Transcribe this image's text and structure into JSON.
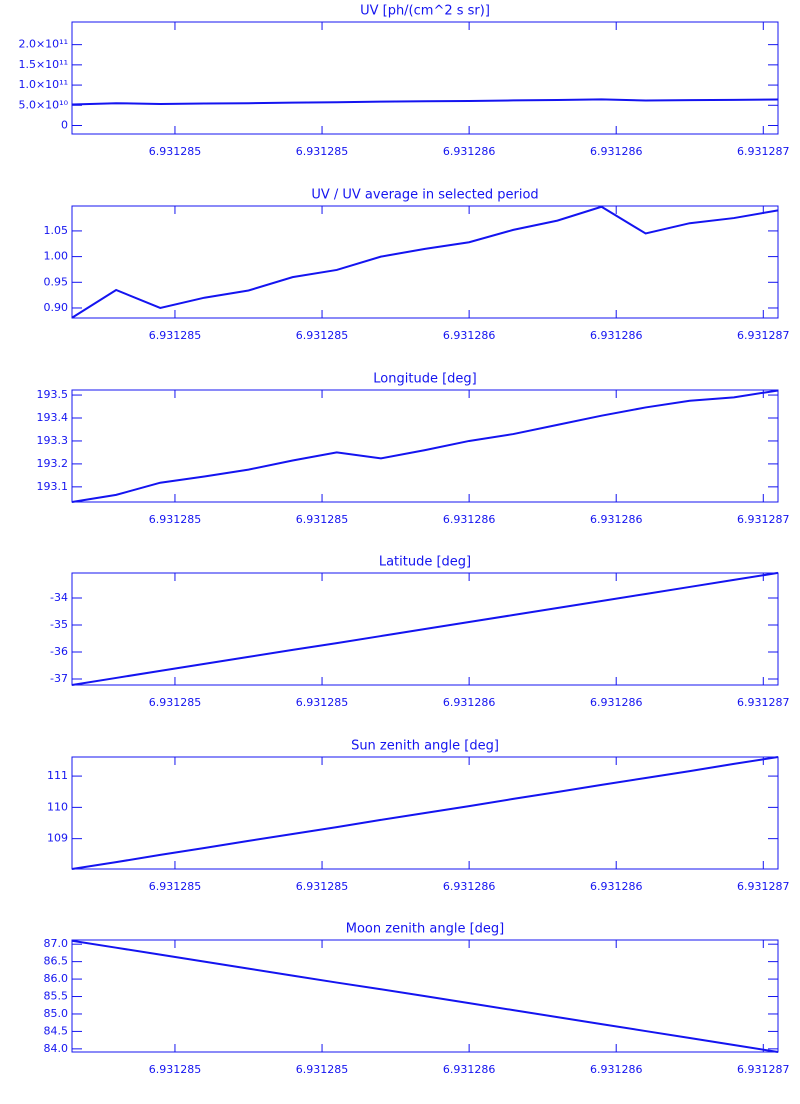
{
  "chart_data": [
    {
      "type": "line",
      "title": "UV [ph/(cm^2 s sr)]",
      "color": "#1414f0",
      "x": [
        6.93128445,
        6.9312846,
        6.93128475,
        6.9312849,
        6.93128505,
        6.9312852,
        6.93128535,
        6.9312855,
        6.93128565,
        6.9312858,
        6.93128595,
        6.9312861,
        6.93128625,
        6.9312864,
        6.93128655,
        6.9312867,
        6.93128685
      ],
      "values": [
        52000000000,
        55200000000,
        53100000000,
        54300000000,
        55100000000,
        56600000000,
        57500000000,
        59000000000,
        59900000000,
        60700000000,
        62100000000,
        63100000000,
        64700000000,
        61700000000,
        62800000000,
        63400000000,
        64300000000
      ],
      "xlim": [
        6.93128445,
        6.93128685
      ],
      "xticks": [
        {
          "value": 6.9312848,
          "label": "6.931285"
        },
        {
          "value": 6.9312853,
          "label": "6.931285"
        },
        {
          "value": 6.9312858,
          "label": "6.931286"
        },
        {
          "value": 6.9312863,
          "label": "6.931286"
        },
        {
          "value": 6.9312868,
          "label": "6.931287"
        }
      ],
      "ylim": [
        -21000000000,
        256000000000
      ],
      "yticks": [
        0,
        {
          "value": 50000000000,
          "label": "5.0×10¹⁰"
        },
        {
          "value": 100000000000,
          "label": "1.0×10¹¹"
        },
        {
          "value": 150000000000,
          "label": "1.5×10¹¹"
        },
        {
          "value": 200000000000,
          "label": "2.0×10¹¹"
        }
      ]
    },
    {
      "type": "line",
      "title": "UV / UV average in selected period",
      "color": "#1414f0",
      "x": [
        6.93128445,
        6.9312846,
        6.93128475,
        6.9312849,
        6.93128505,
        6.9312852,
        6.93128535,
        6.9312855,
        6.93128565,
        6.9312858,
        6.93128595,
        6.9312861,
        6.93128625,
        6.9312864,
        6.93128655,
        6.9312867,
        6.93128685
      ],
      "values": [
        0.881,
        0.935,
        0.9,
        0.92,
        0.934,
        0.96,
        0.974,
        1.0,
        1.015,
        1.028,
        1.052,
        1.07,
        1.097,
        1.045,
        1.065,
        1.075,
        1.09
      ],
      "xlim": [
        6.93128445,
        6.93128685
      ],
      "xticks": [
        {
          "value": 6.9312848,
          "label": "6.931285"
        },
        {
          "value": 6.9312853,
          "label": "6.931285"
        },
        {
          "value": 6.9312858,
          "label": "6.931286"
        },
        {
          "value": 6.9312863,
          "label": "6.931286"
        },
        {
          "value": 6.9312868,
          "label": "6.931287"
        }
      ],
      "ylim": [
        0.8805,
        1.0985
      ],
      "yticks": [
        {
          "value": 0.9,
          "label": "0.90"
        },
        0.95,
        {
          "value": 1.0,
          "label": "1.00"
        },
        1.05
      ]
    },
    {
      "type": "line",
      "title": "Longitude [deg]",
      "color": "#1414f0",
      "x": [
        6.93128445,
        6.9312846,
        6.93128475,
        6.9312849,
        6.93128505,
        6.9312852,
        6.93128535,
        6.9312855,
        6.93128565,
        6.9312858,
        6.93128595,
        6.9312861,
        6.93128625,
        6.9312864,
        6.93128655,
        6.9312867,
        6.93128685
      ],
      "values": [
        193.034,
        193.065,
        193.118,
        193.145,
        193.175,
        193.215,
        193.25,
        193.224,
        193.26,
        193.3,
        193.33,
        193.37,
        193.41,
        193.446,
        193.475,
        193.49,
        193.52
      ],
      "xlim": [
        6.93128445,
        6.93128685
      ],
      "xticks": [
        {
          "value": 6.9312848,
          "label": "6.931285"
        },
        {
          "value": 6.9312853,
          "label": "6.931285"
        },
        {
          "value": 6.9312858,
          "label": "6.931286"
        },
        {
          "value": 6.9312863,
          "label": "6.931286"
        },
        {
          "value": 6.9312868,
          "label": "6.931287"
        }
      ],
      "ylim": [
        193.034,
        193.522
      ],
      "yticks": [
        193.1,
        193.2,
        193.3,
        193.4,
        193.5
      ]
    },
    {
      "type": "line",
      "title": "Latitude [deg]",
      "color": "#1414f0",
      "x": [
        6.93128445,
        6.9312846,
        6.93128475,
        6.9312849,
        6.93128505,
        6.9312852,
        6.93128535,
        6.9312855,
        6.93128565,
        6.9312858,
        6.93128595,
        6.9312861,
        6.93128625,
        6.9312864,
        6.93128655,
        6.9312867,
        6.93128685
      ],
      "values": [
        -37.22,
        -36.96,
        -36.7,
        -36.44,
        -36.18,
        -35.92,
        -35.67,
        -35.41,
        -35.15,
        -34.89,
        -34.63,
        -34.37,
        -34.11,
        -33.85,
        -33.59,
        -33.33,
        -33.07
      ],
      "xlim": [
        6.93128445,
        6.93128685
      ],
      "xticks": [
        {
          "value": 6.9312848,
          "label": "6.931285"
        },
        {
          "value": 6.9312853,
          "label": "6.931285"
        },
        {
          "value": 6.9312858,
          "label": "6.931286"
        },
        {
          "value": 6.9312863,
          "label": "6.931286"
        },
        {
          "value": 6.9312868,
          "label": "6.931287"
        }
      ],
      "ylim": [
        -37.222,
        -33.074
      ],
      "yticks": [
        -37,
        -36,
        -35,
        -34
      ]
    },
    {
      "type": "line",
      "title": "Sun zenith angle [deg]",
      "color": "#1414f0",
      "x": [
        6.93128445,
        6.9312846,
        6.93128475,
        6.9312849,
        6.93128505,
        6.9312852,
        6.93128535,
        6.9312855,
        6.93128565,
        6.9312858,
        6.93128595,
        6.9312861,
        6.93128625,
        6.9312864,
        6.93128655,
        6.9312867,
        6.93128685
      ],
      "values": [
        108.03,
        108.25,
        108.48,
        108.7,
        108.93,
        109.15,
        109.37,
        109.6,
        109.82,
        110.04,
        110.27,
        110.49,
        110.72,
        110.94,
        111.16,
        111.39,
        111.61
      ],
      "xlim": [
        6.93128445,
        6.93128685
      ],
      "xticks": [
        {
          "value": 6.9312848,
          "label": "6.931285"
        },
        {
          "value": 6.9312853,
          "label": "6.931285"
        },
        {
          "value": 6.9312858,
          "label": "6.931286"
        },
        {
          "value": 6.9312863,
          "label": "6.931286"
        },
        {
          "value": 6.9312868,
          "label": "6.931287"
        }
      ],
      "ylim": [
        108.03,
        111.61
      ],
      "yticks": [
        109,
        110,
        111
      ]
    },
    {
      "type": "line",
      "title": "Moon zenith angle [deg]",
      "color": "#1414f0",
      "x": [
        6.93128445,
        6.9312846,
        6.93128475,
        6.9312849,
        6.93128505,
        6.9312852,
        6.93128535,
        6.9312855,
        6.93128565,
        6.9312858,
        6.93128595,
        6.9312861,
        6.93128625,
        6.9312864,
        6.93128655,
        6.9312867,
        6.93128685
      ],
      "values": [
        87.1,
        86.9,
        86.7,
        86.5,
        86.3,
        86.1,
        85.9,
        85.71,
        85.51,
        85.31,
        85.11,
        84.91,
        84.71,
        84.51,
        84.31,
        84.11,
        83.91
      ],
      "xlim": [
        6.93128445,
        6.93128685
      ],
      "xticks": [
        {
          "value": 6.9312848,
          "label": "6.931285"
        },
        {
          "value": 6.9312853,
          "label": "6.931285"
        },
        {
          "value": 6.9312858,
          "label": "6.931286"
        },
        {
          "value": 6.9312863,
          "label": "6.931286"
        },
        {
          "value": 6.9312868,
          "label": "6.931287"
        }
      ],
      "ylim": [
        83.91,
        87.12
      ],
      "yticks": [
        {
          "value": 84,
          "label": "84.0"
        },
        84.5,
        {
          "value": 85,
          "label": "85.0"
        },
        85.5,
        {
          "value": 86,
          "label": "86.0"
        },
        86.5,
        {
          "value": 87,
          "label": "87.0"
        }
      ]
    }
  ]
}
